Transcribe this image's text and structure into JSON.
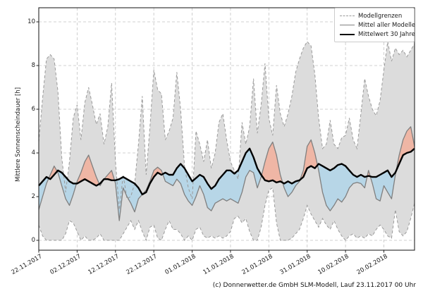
{
  "caption": "(c) Donnerwetter.de GmbH SLM-Modell, Lauf 23.11.2017 00 Uhr",
  "legend": {
    "items": [
      {
        "label": "Modellgrenzen",
        "style": "dashed-gray"
      },
      {
        "label": "Mittel aller Modelle",
        "style": "solid-gray"
      },
      {
        "label": "Mittelwert 30 Jahre",
        "style": "thick-black"
      }
    ]
  },
  "chart_data": {
    "type": "line",
    "title": "",
    "xlabel": "",
    "ylabel": "Mittlere Sonnenscheindauer [h]",
    "ylim": [
      0,
      10
    ],
    "y_ticks": [
      0,
      2,
      4,
      6,
      8,
      10
    ],
    "grid": true,
    "legend_position": "upper right",
    "x_unit": "days since 22.11.2017",
    "x_tick_days": [
      0,
      10,
      20,
      30,
      40,
      50,
      60,
      70,
      80,
      90
    ],
    "x_tick_labels": [
      "22.11.2017",
      "02.12.2017",
      "12.12.2017",
      "22.12.2017",
      "01.01.2018",
      "11.01.2018",
      "21.01.2018",
      "31.01.2018",
      "10.02.2018",
      "20.02.2018"
    ],
    "colors": {
      "band_fill": "#dcdcdc",
      "band_border": "#9a9a9a",
      "fill_below_mean": "#b7d6e7",
      "fill_above_mean": "#efb6a5",
      "model_mean_line": "#7f7f7f",
      "mean30_line": "#000000",
      "grid_line": "#c3c3c3",
      "frame": "#262626"
    },
    "series": [
      {
        "name": "Modellgrenzen oben",
        "role": "band_upper",
        "values": [
          4.5,
          6.5,
          8.3,
          8.5,
          8.3,
          6.8,
          3.8,
          2.2,
          3.6,
          5.6,
          6.2,
          4.6,
          6.3,
          7.0,
          6.2,
          5.3,
          5.8,
          4.4,
          5.2,
          7.2,
          3.6,
          1.4,
          3.0,
          1.9,
          2.0,
          2.6,
          4.4,
          6.6,
          3.0,
          5.2,
          7.8,
          6.9,
          6.7,
          4.6,
          5.0,
          5.6,
          7.7,
          6.0,
          3.4,
          2.4,
          1.9,
          5.0,
          4.4,
          3.6,
          4.6,
          3.3,
          4.0,
          5.4,
          5.8,
          4.6,
          3.6,
          3.2,
          2.8,
          5.4,
          4.4,
          5.2,
          7.4,
          4.9,
          6.2,
          8.1,
          5.6,
          4.8,
          7.1,
          5.8,
          5.2,
          5.8,
          6.6,
          7.7,
          8.3,
          8.8,
          9.1,
          8.9,
          7.6,
          5.6,
          4.2,
          4.4,
          5.5,
          4.4,
          4.2,
          4.7,
          4.8,
          5.6,
          4.6,
          4.2,
          5.8,
          7.4,
          6.6,
          6.0,
          5.7,
          6.4,
          7.8,
          9.1,
          8.2,
          8.8,
          8.5,
          8.7,
          8.4,
          8.7,
          9.0
        ]
      },
      {
        "name": "Modellgrenzen unten",
        "role": "band_lower",
        "values": [
          0.7,
          0.2,
          0.0,
          0.0,
          0.0,
          0.0,
          0.0,
          0.3,
          0.9,
          0.8,
          0.4,
          0.0,
          0.2,
          0.0,
          0.0,
          0.1,
          0.3,
          0.0,
          0.0,
          0.0,
          0.0,
          0.0,
          0.3,
          0.6,
          0.9,
          0.5,
          0.9,
          0.4,
          0.0,
          0.6,
          0.7,
          0.1,
          0.0,
          0.5,
          0.9,
          0.5,
          0.5,
          0.3,
          0.0,
          0.2,
          0.0,
          0.5,
          0.6,
          0.2,
          0.1,
          0.2,
          0.1,
          0.2,
          0.1,
          0.2,
          0.4,
          1.0,
          1.1,
          0.8,
          1.0,
          0.4,
          0.0,
          0.0,
          0.6,
          1.6,
          2.3,
          2.4,
          0.8,
          0.0,
          0.0,
          0.0,
          0.1,
          0.3,
          0.5,
          1.0,
          1.6,
          1.2,
          0.9,
          0.6,
          1.0,
          0.7,
          0.5,
          0.9,
          0.5,
          0.2,
          0.0,
          0.2,
          0.3,
          0.1,
          0.2,
          0.1,
          0.3,
          0.2,
          0.5,
          0.7,
          0.5,
          0.2,
          0.1,
          1.4,
          0.4,
          0.2,
          0.4,
          1.0,
          1.7
        ]
      },
      {
        "name": "Mittel aller Modelle",
        "role": "model_mean",
        "values": [
          1.4,
          2.0,
          2.6,
          3.0,
          3.4,
          3.1,
          2.5,
          1.9,
          1.6,
          2.1,
          2.7,
          3.1,
          3.6,
          3.9,
          3.4,
          2.9,
          2.5,
          2.8,
          3.0,
          3.2,
          2.6,
          0.9,
          2.4,
          2.0,
          1.7,
          1.3,
          1.9,
          2.1,
          2.3,
          2.7,
          3.2,
          3.35,
          3.2,
          2.7,
          2.6,
          2.5,
          2.8,
          2.6,
          2.1,
          1.8,
          1.6,
          2.0,
          2.5,
          2.1,
          1.5,
          1.35,
          1.7,
          1.8,
          1.9,
          1.8,
          1.9,
          1.8,
          1.7,
          2.2,
          2.9,
          3.2,
          3.1,
          2.4,
          2.9,
          3.6,
          4.2,
          4.5,
          3.9,
          3.0,
          2.4,
          2.0,
          2.2,
          2.5,
          2.7,
          3.2,
          4.3,
          4.6,
          4.0,
          3.2,
          2.2,
          1.6,
          1.35,
          1.6,
          1.9,
          1.75,
          2.0,
          2.4,
          2.6,
          2.65,
          2.6,
          2.4,
          3.2,
          2.6,
          1.9,
          1.8,
          2.5,
          2.2,
          1.9,
          3.0,
          3.9,
          4.6,
          5.0,
          5.2,
          4.3
        ]
      },
      {
        "name": "Mittelwert 30 Jahre",
        "role": "mean30",
        "values": [
          2.5,
          2.7,
          2.9,
          2.8,
          3.0,
          3.2,
          3.1,
          2.9,
          2.7,
          2.6,
          2.6,
          2.7,
          2.8,
          2.7,
          2.6,
          2.5,
          2.6,
          2.8,
          2.8,
          2.75,
          2.75,
          2.8,
          2.9,
          2.8,
          2.7,
          2.6,
          2.4,
          2.1,
          2.2,
          2.6,
          2.9,
          3.1,
          3.0,
          3.1,
          3.0,
          3.0,
          3.3,
          3.5,
          3.3,
          3.0,
          2.7,
          2.85,
          3.0,
          2.9,
          2.6,
          2.35,
          2.5,
          2.8,
          3.0,
          3.2,
          3.2,
          3.05,
          3.2,
          3.6,
          4.0,
          4.2,
          3.8,
          3.3,
          3.0,
          2.75,
          2.7,
          2.75,
          2.65,
          2.7,
          2.6,
          2.7,
          2.6,
          2.7,
          2.75,
          2.9,
          3.3,
          3.4,
          3.3,
          3.5,
          3.4,
          3.3,
          3.2,
          3.3,
          3.45,
          3.5,
          3.4,
          3.2,
          3.0,
          2.9,
          3.0,
          2.9,
          2.95,
          2.9,
          2.9,
          3.0,
          3.1,
          3.2,
          2.9,
          3.1,
          3.5,
          3.9,
          4.0,
          4.05,
          4.2
        ]
      }
    ]
  }
}
